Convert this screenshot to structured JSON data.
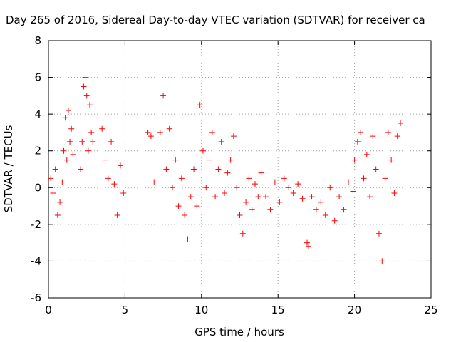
{
  "chart_data": {
    "type": "scatter",
    "title": "Day 265 of 2016, Sidereal Day-to-day VTEC variation (SDTVAR) for receiver ca",
    "xlabel": "GPS time / hours",
    "ylabel": "SDTVAR / TECUs",
    "xlim": [
      0,
      25
    ],
    "ylim": [
      -6,
      8
    ],
    "xticks": [
      "0",
      "5",
      "10",
      "15",
      "20",
      "25"
    ],
    "yticks": [
      "-6",
      "-4",
      "-2",
      "0",
      "2",
      "4",
      "6",
      "8"
    ],
    "grid": true,
    "marker": "+",
    "color": "#ff0000",
    "series": [
      {
        "name": "SDTVAR",
        "segments": [
          {
            "x": [
              0.15,
              0.3,
              0.45,
              0.6,
              0.75,
              0.9
            ],
            "y": [
              0.5,
              -0.3,
              1.0,
              -1.5,
              -0.8,
              0.3
            ]
          },
          {
            "x": [
              1.0,
              1.1,
              1.2,
              1.3,
              1.4,
              1.5,
              1.6
            ],
            "y": [
              2.0,
              3.8,
              1.5,
              4.2,
              2.5,
              3.2,
              1.8
            ]
          },
          {
            "x": [
              2.1,
              2.2,
              2.3,
              2.4,
              2.5,
              2.6,
              2.7,
              2.8,
              2.9
            ],
            "y": [
              1.0,
              2.5,
              5.5,
              6.0,
              5.0,
              2.0,
              4.5,
              3.0,
              2.5
            ]
          },
          {
            "x": [
              3.5,
              3.7,
              3.9,
              4.1,
              4.3,
              4.5,
              4.7,
              4.9
            ],
            "y": [
              3.2,
              1.5,
              0.5,
              2.5,
              0.2,
              -1.5,
              1.2,
              -0.3
            ]
          },
          {
            "x": [
              6.5,
              6.7,
              6.9,
              7.1,
              7.3,
              7.5,
              7.7,
              7.9,
              8.1,
              8.3,
              8.5,
              8.7
            ],
            "y": [
              3.0,
              2.8,
              0.3,
              2.2,
              3.0,
              5.0,
              1.0,
              3.2,
              0.0,
              1.5,
              -1.0,
              0.5
            ]
          },
          {
            "x": [
              8.9,
              9.1,
              9.3,
              9.5,
              9.7,
              9.9,
              10.1,
              10.3,
              10.5,
              10.7,
              10.9,
              11.1,
              11.3,
              11.5,
              11.7,
              11.9,
              12.1,
              12.3,
              12.5,
              12.7,
              12.9,
              13.1,
              13.3,
              13.5,
              13.7,
              13.9
            ],
            "y": [
              -1.5,
              -2.8,
              -0.5,
              1.0,
              -1.0,
              4.5,
              2.0,
              0.0,
              1.5,
              3.0,
              -0.5,
              1.0,
              2.5,
              -0.3,
              0.8,
              1.5,
              2.8,
              0.0,
              -1.5,
              -2.5,
              -0.8,
              0.5,
              -1.2,
              0.2,
              -0.5,
              0.8
            ]
          },
          {
            "x": [
              14.2,
              14.5,
              14.8,
              15.1,
              15.4,
              15.7,
              16.0,
              16.3,
              16.6,
              16.9,
              17.0,
              17.2,
              17.5,
              17.8,
              18.1,
              18.4,
              18.7,
              19.0,
              19.3,
              19.6,
              19.9
            ],
            "y": [
              -0.5,
              -1.2,
              0.3,
              -0.8,
              0.5,
              0.0,
              -0.3,
              0.2,
              -0.6,
              -3.0,
              -3.2,
              -0.5,
              -1.2,
              -0.8,
              -1.5,
              0.0,
              -1.8,
              -0.5,
              -1.2,
              0.3,
              -0.2
            ]
          },
          {
            "x": [
              20.0,
              20.2,
              20.4,
              20.6,
              20.8,
              21.0,
              21.2,
              21.4,
              21.6,
              21.8,
              22.0,
              22.2,
              22.4,
              22.6,
              22.8,
              23.0
            ],
            "y": [
              1.5,
              2.5,
              3.0,
              0.5,
              1.8,
              -0.5,
              2.8,
              1.0,
              -2.5,
              -4.0,
              0.5,
              3.0,
              1.5,
              -0.3,
              2.8,
              3.5
            ]
          }
        ]
      }
    ]
  }
}
